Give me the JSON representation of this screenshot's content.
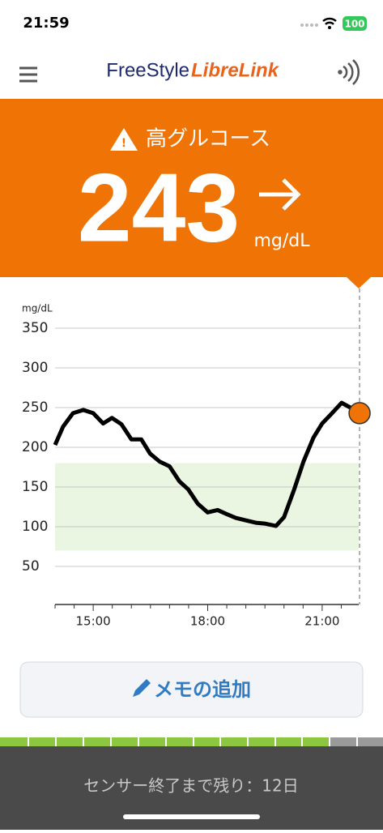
{
  "status_bar": {
    "time": "21:59",
    "battery": "100"
  },
  "header": {
    "logo_part1": "FreeStyle",
    "logo_part2": "LibreLink"
  },
  "alert": {
    "title": "高グルコース",
    "value": "243",
    "unit": "mg/dL"
  },
  "chart_data": {
    "type": "line",
    "y_unit_label": "mg/dL",
    "x": [
      14.0,
      14.21,
      14.47,
      14.74,
      15.0,
      15.26,
      15.49,
      15.74,
      16.0,
      16.26,
      16.49,
      16.74,
      17.0,
      17.26,
      17.49,
      17.74,
      18.0,
      18.26,
      18.49,
      18.74,
      19.0,
      19.26,
      19.49,
      19.79,
      20.0,
      20.26,
      20.51,
      20.77,
      21.0,
      21.26,
      21.51,
      21.74,
      21.98
    ],
    "series": [
      {
        "color": "#000000",
        "values": [
          203,
          226,
          243,
          247,
          243,
          230,
          237,
          229,
          210,
          210,
          192,
          182,
          176,
          157,
          147,
          129,
          118,
          121,
          116,
          111,
          108,
          105,
          104,
          101,
          112,
          146,
          182,
          212,
          230,
          243,
          256,
          250,
          243
        ]
      }
    ],
    "ylim": [
      0,
      350
    ],
    "yticks": [
      50,
      100,
      150,
      200,
      250,
      300,
      350
    ],
    "xlim": [
      14,
      22
    ],
    "xticks": [
      {
        "value": 15,
        "label": "15:00"
      },
      {
        "value": 18,
        "label": "18:00"
      },
      {
        "value": 21,
        "label": "21:00"
      }
    ],
    "x_minor_ticks": [
      14,
      14.5,
      15.5,
      16,
      16.5,
      17,
      17.5,
      18.5,
      19,
      19.5,
      20,
      20.5,
      21.5
    ],
    "target_range": [
      70,
      180
    ],
    "target_color": "#eaf5e2",
    "current": {
      "x": 21.98,
      "value": 243,
      "color": "#ef7305"
    },
    "grid": true
  },
  "button": {
    "label": "メモの追加"
  },
  "footer": {
    "text": "センサー終了まで残り：12日"
  }
}
